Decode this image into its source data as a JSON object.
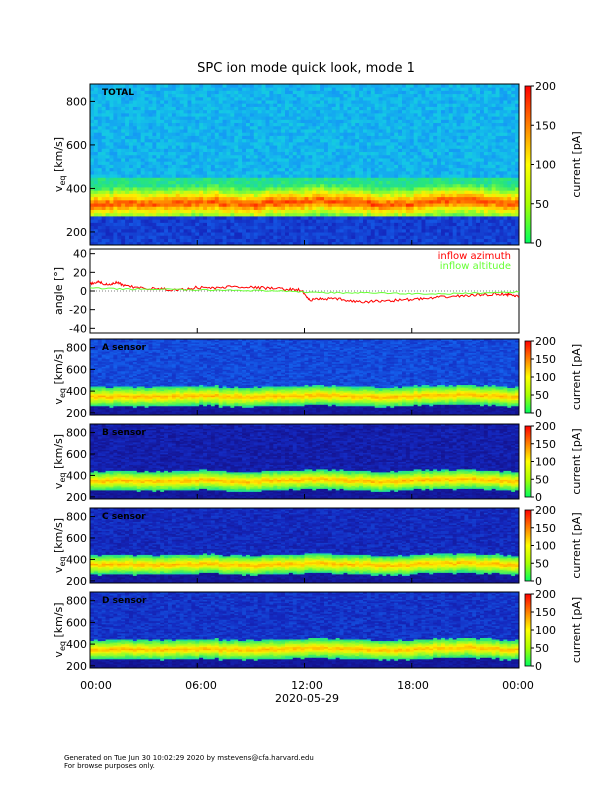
{
  "chart_data": [
    {
      "type": "heatmap",
      "title": "SPC ion mode quick look, mode 1",
      "panel_label": "TOTAL",
      "ylabel_main": "v",
      "ylabel_sub": "eq",
      "ylabel_unit": "[km/s]",
      "ylim": [
        140,
        880
      ],
      "yticks": [
        200,
        400,
        600,
        800
      ],
      "colorbar": {
        "label": "current [pA]",
        "range": [
          0,
          200
        ],
        "ticks": [
          0,
          50,
          100,
          150,
          200
        ]
      },
      "ridge_velocity_kms": [
        330,
        335,
        330,
        330,
        335,
        340,
        330,
        325,
        335,
        340,
        345,
        340,
        335,
        325,
        330,
        340,
        345,
        350,
        340,
        330
      ]
    },
    {
      "type": "line",
      "ylabel": "angle [°]",
      "ylim": [
        -45,
        45
      ],
      "yticks": [
        -40,
        -20,
        0,
        20,
        40
      ],
      "series": [
        {
          "name": "inflow azimuth",
          "color": "#ff0000",
          "t_hours": [
            0,
            0.5,
            1,
            1.5,
            2,
            3,
            4,
            5,
            6,
            7,
            8,
            9,
            10,
            11,
            11.8,
            12.3,
            13,
            14,
            15,
            16,
            17,
            18,
            19,
            20,
            21,
            22,
            23,
            23.5,
            24
          ],
          "values": [
            8,
            10,
            6,
            9,
            5,
            3,
            2,
            1,
            4,
            3,
            5,
            4,
            3,
            2,
            1,
            -10,
            -8,
            -9,
            -12,
            -11,
            -10,
            -9,
            -8,
            -6,
            -5,
            -4,
            -3,
            -4,
            -6
          ]
        },
        {
          "name": "inflow altitude",
          "color": "#66ff33",
          "t_hours": [
            0,
            2,
            4,
            6,
            8,
            10,
            12,
            14,
            16,
            18,
            20,
            22,
            24
          ],
          "values": [
            3,
            2,
            2,
            1,
            1,
            0,
            -1,
            -2,
            -2,
            -3,
            -3,
            -2,
            -1
          ]
        }
      ]
    },
    {
      "type": "heatmap",
      "panel_label": "A sensor",
      "ylabel_main": "v",
      "ylabel_sub": "eq",
      "ylabel_unit": "[km/s]",
      "ylim": [
        180,
        880
      ],
      "yticks": [
        200,
        400,
        600,
        800
      ],
      "colorbar": {
        "label": "current [pA]",
        "range": [
          0,
          200
        ],
        "ticks": [
          0,
          50,
          100,
          150,
          200
        ]
      }
    },
    {
      "type": "heatmap",
      "panel_label": "B sensor",
      "ylabel_main": "v",
      "ylabel_sub": "eq",
      "ylabel_unit": "[km/s]",
      "ylim": [
        180,
        880
      ],
      "yticks": [
        200,
        400,
        600,
        800
      ],
      "colorbar": {
        "label": "current [pA]",
        "range": [
          0,
          200
        ],
        "ticks": [
          0,
          50,
          100,
          150,
          200
        ]
      }
    },
    {
      "type": "heatmap",
      "panel_label": "C sensor",
      "ylabel_main": "v",
      "ylabel_sub": "eq",
      "ylabel_unit": "[km/s]",
      "ylim": [
        180,
        880
      ],
      "yticks": [
        200,
        400,
        600,
        800
      ],
      "colorbar": {
        "label": "current [pA]",
        "range": [
          0,
          200
        ],
        "ticks": [
          0,
          50,
          100,
          150,
          200
        ]
      }
    },
    {
      "type": "heatmap",
      "panel_label": "D sensor",
      "ylabel_main": "v",
      "ylabel_sub": "eq",
      "ylabel_unit": "[km/s]",
      "ylim": [
        180,
        880
      ],
      "yticks": [
        200,
        400,
        600,
        800
      ],
      "colorbar": {
        "label": "current [pA]",
        "range": [
          0,
          200
        ],
        "ticks": [
          0,
          50,
          100,
          150,
          200
        ]
      }
    }
  ],
  "x_axis": {
    "tick_labels": [
      "00:00",
      "06:00",
      "12:00",
      "18:00",
      "00:00"
    ],
    "tick_hours": [
      0,
      6,
      12,
      18,
      24
    ],
    "date_label": "2020-05-29"
  },
  "footer": {
    "line1": "Generated on Tue Jun 30 10:02:29 2020 by mstevens@cfa.harvard.edu",
    "line2": "For browse purposes only."
  }
}
